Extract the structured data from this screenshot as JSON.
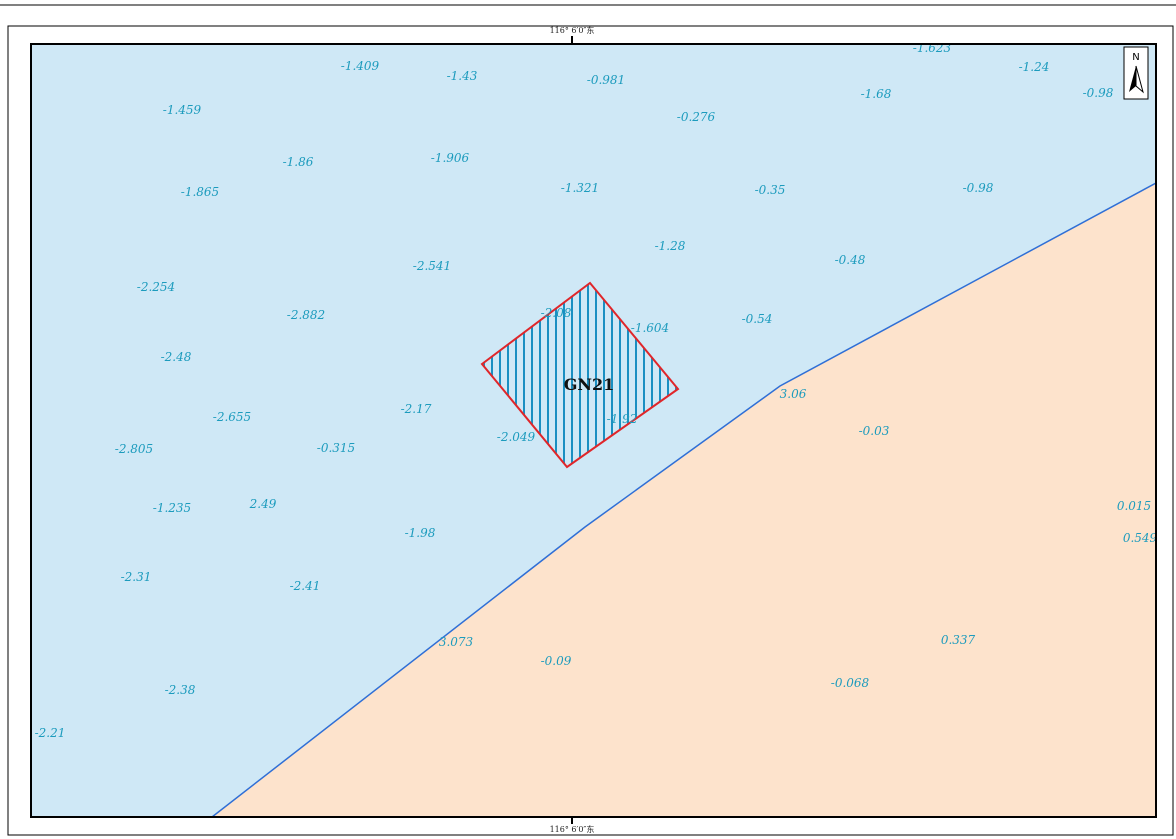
{
  "map": {
    "coord_top": "116° 6′0″东",
    "coord_bottom": "116° 6′0″东",
    "north_letter": "N",
    "zone_label": "GN21",
    "colors": {
      "sea": "#cfe8f6",
      "land": "#fde3cc",
      "shoreline": "#2f6fd6",
      "zone_border": "#e0262a",
      "hatch": "#1a8fc2",
      "depth_text": "#1c9bbd"
    }
  },
  "soundings": [
    {
      "value": "-1.623"
    },
    {
      "value": "-1.409"
    },
    {
      "value": "-1.43"
    },
    {
      "value": "-0.981"
    },
    {
      "value": "-1.24"
    },
    {
      "value": "-0.98"
    },
    {
      "value": "-1.68"
    },
    {
      "value": "-1.459"
    },
    {
      "value": "-0.276"
    },
    {
      "value": "-1.86"
    },
    {
      "value": "-1.906"
    },
    {
      "value": "-1.865"
    },
    {
      "value": "-1.321"
    },
    {
      "value": "-0.35"
    },
    {
      "value": "-0.98"
    },
    {
      "value": "-1.28"
    },
    {
      "value": "-0.48"
    },
    {
      "value": "-2.541"
    },
    {
      "value": "-2.254"
    },
    {
      "value": "-2.882"
    },
    {
      "value": "-2.08"
    },
    {
      "value": "-1.604"
    },
    {
      "value": "-0.54"
    },
    {
      "value": "-2.48"
    },
    {
      "value": "3.06"
    },
    {
      "value": "-2.655"
    },
    {
      "value": "-2.17"
    },
    {
      "value": "-1.92"
    },
    {
      "value": "-0.03"
    },
    {
      "value": "-2.049"
    },
    {
      "value": "-2.805"
    },
    {
      "value": "-0.315"
    },
    {
      "value": "0.015"
    },
    {
      "value": "-1.235"
    },
    {
      "value": "2.49"
    },
    {
      "value": "0.549"
    },
    {
      "value": "-1.98"
    },
    {
      "value": "-2.31"
    },
    {
      "value": "-2.41"
    },
    {
      "value": "3.073"
    },
    {
      "value": "0.337"
    },
    {
      "value": "-0.09"
    },
    {
      "value": "-0.068"
    },
    {
      "value": "-2.38"
    },
    {
      "value": "-2.21"
    }
  ]
}
